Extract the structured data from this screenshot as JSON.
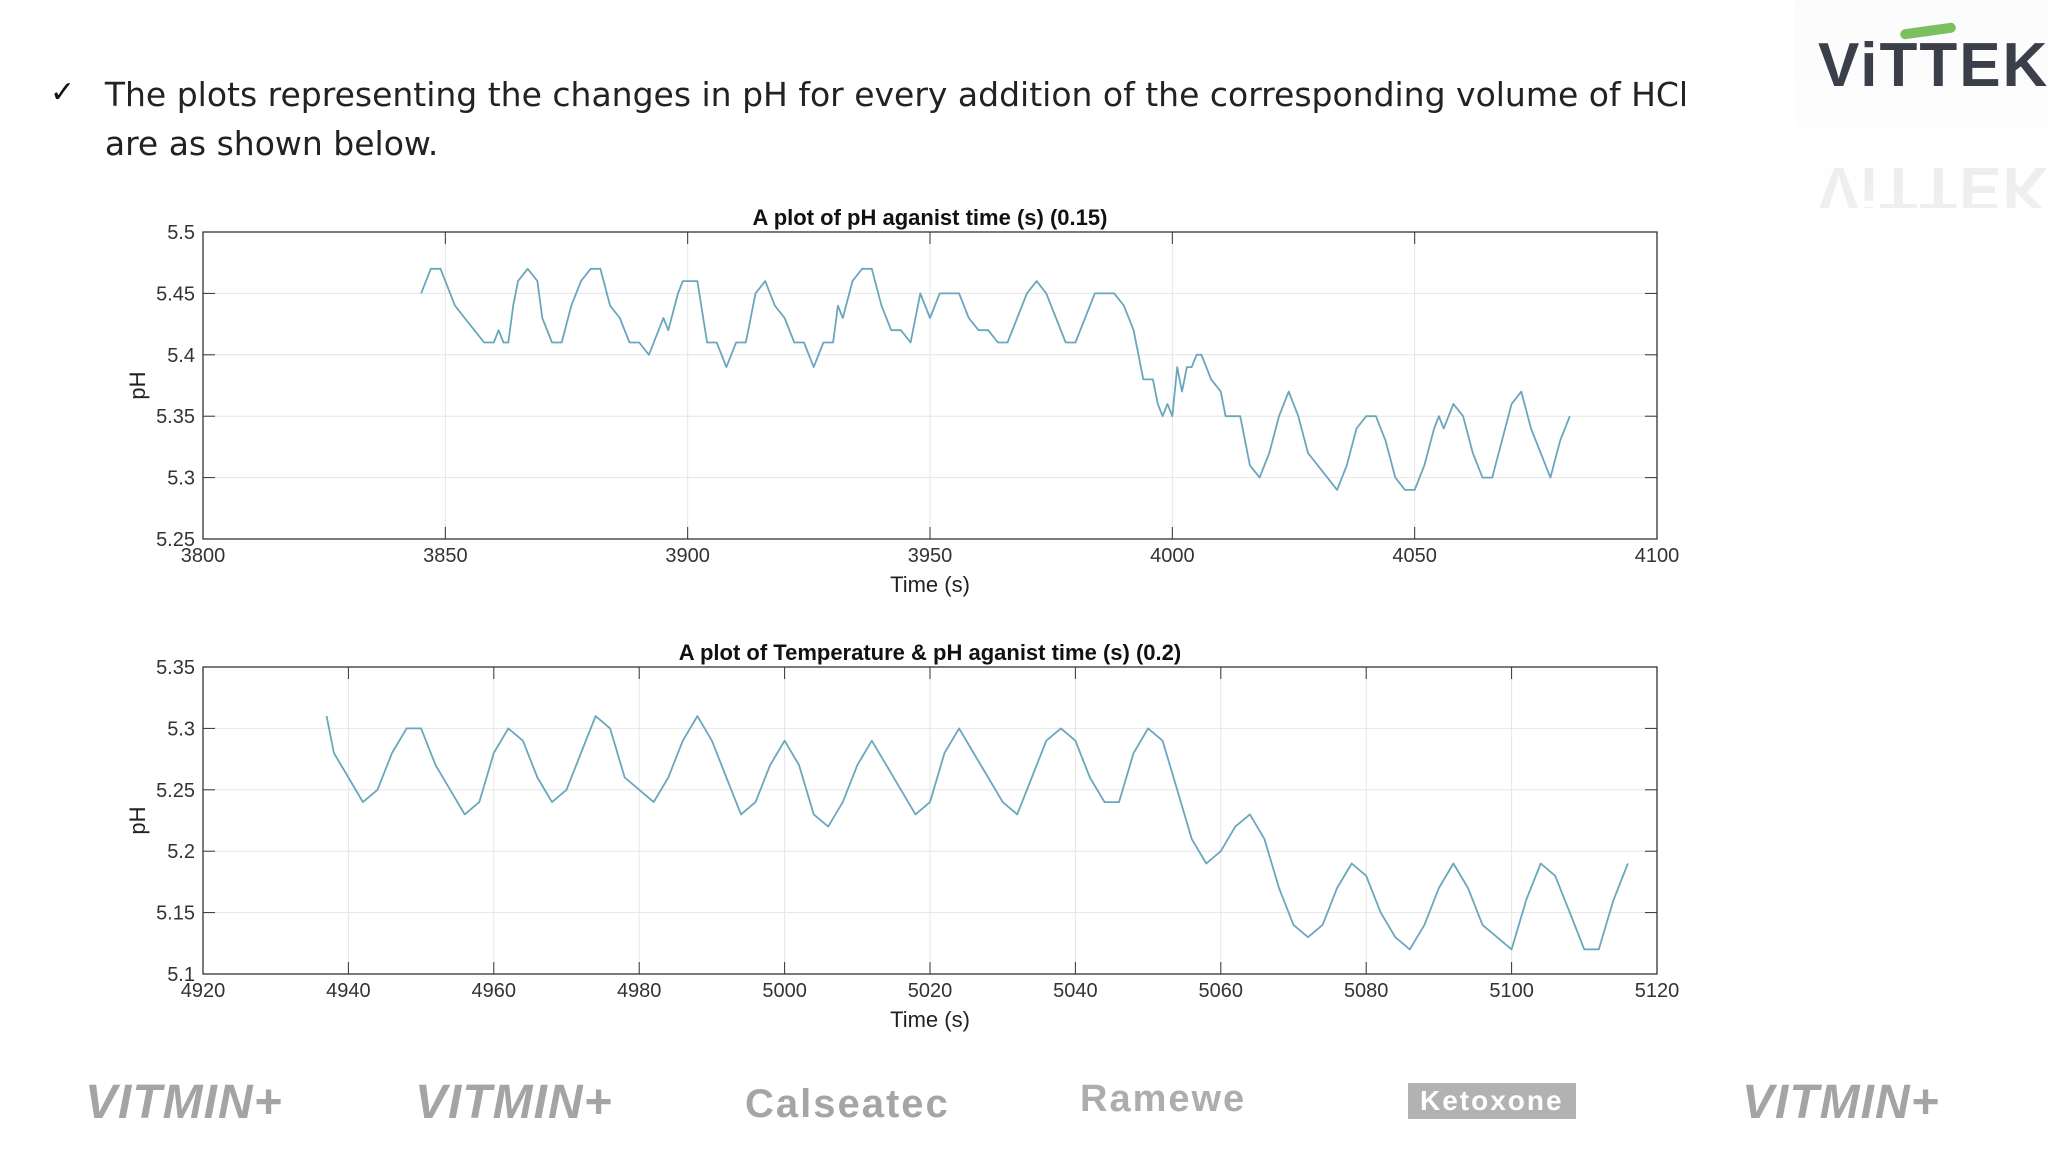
{
  "bullet": {
    "marker": "✓",
    "text": "The plots representing the changes in pH for every addition of the corresponding volume of HCl are as shown below."
  },
  "logo": {
    "text": "ViTTEK",
    "accent": "#7bbf5e",
    "color": "#3b3f4a"
  },
  "brands": [
    "VITMIN+",
    "VITMIN+",
    "Calseatec",
    "Ramewe",
    "Ketoxone",
    "VITMIN+"
  ],
  "chart_data": [
    {
      "type": "line",
      "title": "A plot of pH aganist time (s) (0.15)",
      "xlabel": "Time (s)",
      "ylabel": "pH",
      "xlim": [
        3800,
        4100
      ],
      "ylim": [
        5.25,
        5.5
      ],
      "xticks": [
        3800,
        3850,
        3900,
        3950,
        4000,
        4050,
        4100
      ],
      "yticks": [
        5.25,
        5.3,
        5.35,
        5.4,
        5.45,
        5.5
      ],
      "xtick_labels": [
        "3800",
        "3850",
        "3900",
        "3950",
        "4000",
        "4050",
        "4100"
      ],
      "ytick_labels": [
        "5.25",
        "5.3",
        "5.35",
        "5.4",
        "5.45",
        "5.5"
      ],
      "grid": true,
      "line_color": "#6aa7bd",
      "series": [
        {
          "name": "pH",
          "x": [
            3845,
            3847,
            3849,
            3851,
            3852,
            3854,
            3856,
            3858,
            3860,
            3861,
            3862,
            3863,
            3864,
            3865,
            3867,
            3869,
            3870,
            3872,
            3874,
            3876,
            3878,
            3880,
            3882,
            3884,
            3886,
            3888,
            3890,
            3892,
            3894,
            3895,
            3896,
            3898,
            3899,
            3900,
            3902,
            3904,
            3906,
            3908,
            3910,
            3912,
            3913,
            3914,
            3916,
            3918,
            3920,
            3922,
            3924,
            3926,
            3928,
            3930,
            3931,
            3932,
            3934,
            3936,
            3938,
            3940,
            3942,
            3944,
            3946,
            3948,
            3950,
            3952,
            3954,
            3956,
            3958,
            3960,
            3962,
            3964,
            3966,
            3968,
            3970,
            3972,
            3974,
            3976,
            3978,
            3980,
            3982,
            3984,
            3986,
            3988,
            3990,
            3992,
            3994,
            3995,
            3996,
            3997,
            3998,
            3999,
            4000,
            4001,
            4002,
            4003,
            4004,
            4005,
            4006,
            4007,
            4008,
            4010,
            4011,
            4012,
            4014,
            4016,
            4018,
            4020,
            4022,
            4024,
            4026,
            4028,
            4030,
            4032,
            4034,
            4036,
            4038,
            4040,
            4042,
            4044,
            4046,
            4048,
            4050,
            4052,
            4054,
            4055,
            4056,
            4058,
            4060,
            4062,
            4064,
            4066,
            4068,
            4070,
            4072,
            4074,
            4076,
            4078,
            4080,
            4082
          ],
          "y": [
            5.45,
            5.47,
            5.47,
            5.45,
            5.44,
            5.43,
            5.42,
            5.41,
            5.41,
            5.42,
            5.41,
            5.41,
            5.44,
            5.46,
            5.47,
            5.46,
            5.43,
            5.41,
            5.41,
            5.44,
            5.46,
            5.47,
            5.47,
            5.44,
            5.43,
            5.41,
            5.41,
            5.4,
            5.42,
            5.43,
            5.42,
            5.45,
            5.46,
            5.46,
            5.46,
            5.41,
            5.41,
            5.39,
            5.41,
            5.41,
            5.43,
            5.45,
            5.46,
            5.44,
            5.43,
            5.41,
            5.41,
            5.39,
            5.41,
            5.41,
            5.44,
            5.43,
            5.46,
            5.47,
            5.47,
            5.44,
            5.42,
            5.42,
            5.41,
            5.45,
            5.43,
            5.45,
            5.45,
            5.45,
            5.43,
            5.42,
            5.42,
            5.41,
            5.41,
            5.43,
            5.45,
            5.46,
            5.45,
            5.43,
            5.41,
            5.41,
            5.43,
            5.45,
            5.45,
            5.45,
            5.44,
            5.42,
            5.38,
            5.38,
            5.38,
            5.36,
            5.35,
            5.36,
            5.35,
            5.39,
            5.37,
            5.39,
            5.39,
            5.4,
            5.4,
            5.39,
            5.38,
            5.37,
            5.35,
            5.35,
            5.35,
            5.31,
            5.3,
            5.32,
            5.35,
            5.37,
            5.35,
            5.32,
            5.31,
            5.3,
            5.29,
            5.31,
            5.34,
            5.35,
            5.35,
            5.33,
            5.3,
            5.29,
            5.29,
            5.31,
            5.34,
            5.35,
            5.34,
            5.36,
            5.35,
            5.32,
            5.3,
            5.3,
            5.33,
            5.36,
            5.37,
            5.34,
            5.32,
            5.3,
            5.33,
            5.35
          ]
        }
      ]
    },
    {
      "type": "line",
      "title": "A plot of Temperature & pH aganist time (s) (0.2)",
      "xlabel": "Time (s)",
      "ylabel": "pH",
      "xlim": [
        4920,
        5120
      ],
      "ylim": [
        5.1,
        5.35
      ],
      "xticks": [
        4920,
        4940,
        4960,
        4980,
        5000,
        5020,
        5040,
        5060,
        5080,
        5100,
        5120
      ],
      "yticks": [
        5.1,
        5.15,
        5.2,
        5.25,
        5.3,
        5.35
      ],
      "xtick_labels": [
        "4920",
        "4940",
        "4960",
        "4980",
        "5000",
        "5020",
        "5040",
        "5060",
        "5080",
        "5100",
        "5120"
      ],
      "ytick_labels": [
        "5.1",
        "5.15",
        "5.2",
        "5.25",
        "5.3",
        "5.35"
      ],
      "grid": true,
      "line_color": "#6aa7bd",
      "series": [
        {
          "name": "pH",
          "x": [
            4937,
            4938,
            4940,
            4942,
            4944,
            4946,
            4948,
            4950,
            4952,
            4954,
            4956,
            4958,
            4960,
            4962,
            4964,
            4966,
            4968,
            4970,
            4972,
            4974,
            4976,
            4978,
            4980,
            4982,
            4984,
            4986,
            4988,
            4990,
            4992,
            4994,
            4996,
            4998,
            5000,
            5002,
            5004,
            5006,
            5008,
            5010,
            5012,
            5014,
            5016,
            5018,
            5020,
            5022,
            5024,
            5026,
            5028,
            5030,
            5032,
            5034,
            5036,
            5038,
            5040,
            5042,
            5044,
            5046,
            5048,
            5050,
            5052,
            5054,
            5056,
            5058,
            5060,
            5062,
            5064,
            5066,
            5068,
            5070,
            5072,
            5074,
            5076,
            5078,
            5080,
            5082,
            5084,
            5086,
            5088,
            5090,
            5092,
            5094,
            5096,
            5098,
            5100,
            5102,
            5104,
            5106,
            5108,
            5110,
            5112,
            5114,
            5116
          ],
          "y": [
            5.31,
            5.28,
            5.26,
            5.24,
            5.25,
            5.28,
            5.3,
            5.3,
            5.27,
            5.25,
            5.23,
            5.24,
            5.28,
            5.3,
            5.29,
            5.26,
            5.24,
            5.25,
            5.28,
            5.31,
            5.3,
            5.26,
            5.25,
            5.24,
            5.26,
            5.29,
            5.31,
            5.29,
            5.26,
            5.23,
            5.24,
            5.27,
            5.29,
            5.27,
            5.23,
            5.22,
            5.24,
            5.27,
            5.29,
            5.27,
            5.25,
            5.23,
            5.24,
            5.28,
            5.3,
            5.28,
            5.26,
            5.24,
            5.23,
            5.26,
            5.29,
            5.3,
            5.29,
            5.26,
            5.24,
            5.24,
            5.28,
            5.3,
            5.29,
            5.25,
            5.21,
            5.19,
            5.2,
            5.22,
            5.23,
            5.21,
            5.17,
            5.14,
            5.13,
            5.14,
            5.17,
            5.19,
            5.18,
            5.15,
            5.13,
            5.12,
            5.14,
            5.17,
            5.19,
            5.17,
            5.14,
            5.13,
            5.12,
            5.16,
            5.19,
            5.18,
            5.15,
            5.12,
            5.12,
            5.16,
            5.19
          ]
        }
      ]
    }
  ]
}
